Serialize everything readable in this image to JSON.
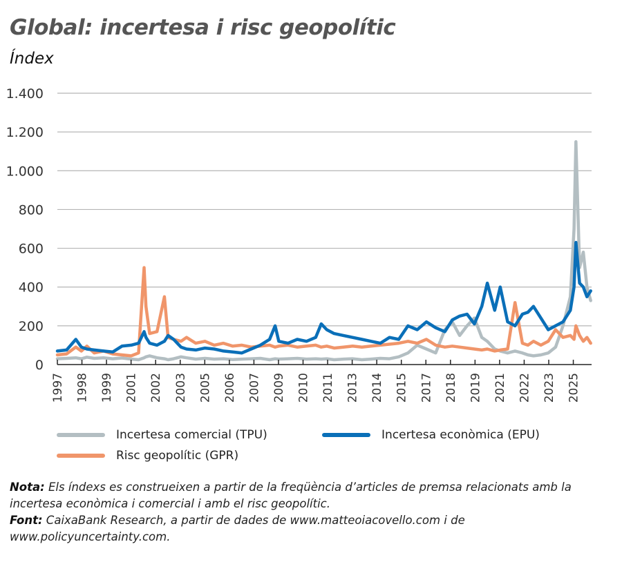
{
  "header": {
    "title": "Global: incertesa i risc geopolític",
    "subtitle": "Índex"
  },
  "legend": {
    "items": [
      {
        "label": "Incertesa comercial (TPU)",
        "color": "#b3bec2"
      },
      {
        "label": "Incertesa econòmica (EPU)",
        "color": "#0a6fb8"
      },
      {
        "label": "Risc geopolític (GPR)",
        "color": "#f0956a"
      }
    ]
  },
  "notes": {
    "nota_label": "Nota:",
    "nota_text": " Els índexs es construeixen a partir de la freqüència d’articles de premsa relacionats amb la incertesa econòmica i comercial i amb el risc geopolític.",
    "font_label": "Font:",
    "font_text": " CaixaBank Research, a partir de dades de www.matteoiacovello.com i de www.policyuncertainty.com."
  },
  "chart_data": {
    "type": "line",
    "title": "Global: incertesa i risc geopolític",
    "subtitle": "Índex",
    "xlabel": "",
    "ylabel": "Índex",
    "ylim": [
      0,
      1400
    ],
    "yticks": [
      0,
      200,
      400,
      600,
      800,
      1000,
      1200,
      1400
    ],
    "ytick_labels": [
      "0",
      "200",
      "400",
      "600",
      "800",
      "1.000",
      "1.200",
      "1.400"
    ],
    "xtick_labels": [
      "1997",
      "1998",
      "1999",
      "2001",
      "2002",
      "2003",
      "2005",
      "2006",
      "2007",
      "2009",
      "2010",
      "2011",
      "2013",
      "2014",
      "2015",
      "2017",
      "2018",
      "2019",
      "2021",
      "2022",
      "2023",
      "2025"
    ],
    "grid": true,
    "legend_position": "bottom",
    "x": [
      1997.0,
      1997.5,
      1998.0,
      1998.3,
      1998.6,
      1999.0,
      1999.5,
      2000.0,
      2000.5,
      2001.0,
      2001.4,
      2001.7,
      2001.8,
      2002.0,
      2002.4,
      2002.8,
      2003.0,
      2003.3,
      2003.7,
      2004.0,
      2004.5,
      2005.0,
      2005.5,
      2006.0,
      2006.5,
      2007.0,
      2007.5,
      2008.0,
      2008.5,
      2008.8,
      2009.0,
      2009.5,
      2010.0,
      2010.5,
      2011.0,
      2011.3,
      2011.6,
      2012.0,
      2012.5,
      2013.0,
      2013.5,
      2014.0,
      2014.5,
      2015.0,
      2015.5,
      2016.0,
      2016.5,
      2017.0,
      2017.5,
      2018.0,
      2018.4,
      2018.8,
      2019.2,
      2019.6,
      2020.0,
      2020.3,
      2020.7,
      2021.0,
      2021.4,
      2021.8,
      2022.2,
      2022.5,
      2022.8,
      2023.2,
      2023.6,
      2024.0,
      2024.4,
      2024.8,
      2025.0,
      2025.1,
      2025.3,
      2025.5,
      2025.7,
      2025.9
    ],
    "series": [
      {
        "name": "Incertesa comercial (TPU)",
        "color": "#b3bec2",
        "values": [
          30,
          32,
          35,
          30,
          38,
          32,
          35,
          30,
          34,
          28,
          25,
          35,
          40,
          45,
          35,
          30,
          25,
          30,
          40,
          35,
          28,
          32,
          28,
          30,
          26,
          28,
          30,
          32,
          25,
          30,
          28,
          30,
          32,
          28,
          30,
          28,
          30,
          25,
          28,
          30,
          25,
          28,
          32,
          30,
          40,
          60,
          100,
          80,
          60,
          180,
          220,
          150,
          200,
          240,
          140,
          120,
          80,
          70,
          60,
          70,
          60,
          50,
          45,
          50,
          60,
          90,
          200,
          350,
          700,
          1150,
          500,
          580,
          400,
          330
        ]
      },
      {
        "name": "Incertesa econòmica (EPU)",
        "color": "#0a6fb8",
        "values": [
          70,
          75,
          130,
          90,
          80,
          75,
          70,
          65,
          95,
          100,
          110,
          170,
          140,
          110,
          100,
          120,
          150,
          130,
          90,
          80,
          75,
          85,
          80,
          70,
          65,
          60,
          80,
          100,
          130,
          200,
          120,
          110,
          130,
          120,
          140,
          210,
          180,
          160,
          150,
          140,
          130,
          120,
          110,
          140,
          130,
          200,
          180,
          220,
          190,
          170,
          230,
          250,
          260,
          210,
          300,
          420,
          280,
          400,
          220,
          200,
          260,
          270,
          300,
          240,
          180,
          200,
          220,
          280,
          400,
          630,
          420,
          400,
          350,
          380
        ]
      },
      {
        "name": "Risc geopolític (GPR)",
        "color": "#f0956a",
        "values": [
          50,
          55,
          90,
          70,
          95,
          60,
          70,
          55,
          50,
          45,
          60,
          500,
          300,
          160,
          170,
          350,
          140,
          130,
          120,
          140,
          110,
          120,
          100,
          110,
          95,
          100,
          90,
          95,
          100,
          90,
          95,
          100,
          90,
          95,
          100,
          90,
          95,
          85,
          90,
          95,
          90,
          95,
          100,
          105,
          110,
          120,
          110,
          130,
          100,
          90,
          95,
          90,
          85,
          80,
          75,
          80,
          70,
          75,
          80,
          320,
          110,
          100,
          120,
          100,
          120,
          180,
          140,
          150,
          130,
          200,
          150,
          120,
          140,
          110
        ]
      }
    ]
  }
}
